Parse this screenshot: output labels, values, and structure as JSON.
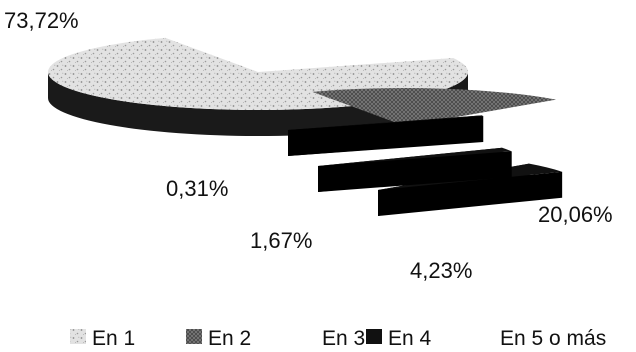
{
  "chart_data": {
    "type": "pie",
    "style": "3d-exploded",
    "categories": [
      "En 1",
      "En 2",
      "En 3",
      "En 4",
      "En 5 o más"
    ],
    "values": [
      73.72,
      20.06,
      4.23,
      1.67,
      0.31
    ],
    "value_labels": [
      "73,72%",
      "20,06%",
      "4,23%",
      "1,67%",
      "0,31%"
    ],
    "legend_position": "bottom",
    "colors": {
      "En 1": "#d0d0d0",
      "En 2": "#5a5a5a",
      "En 3": "#ffffff",
      "En 4": "#111111",
      "En 5 o más": "#ffffff"
    }
  }
}
